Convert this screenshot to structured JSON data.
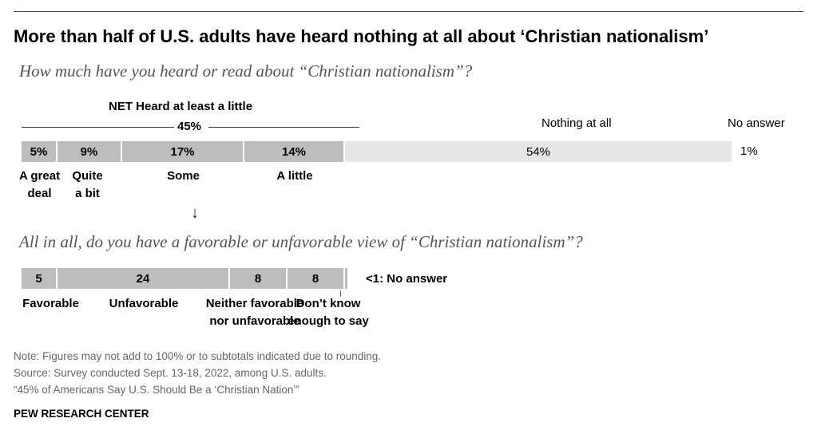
{
  "title": "More than half of U.S. adults have heard nothing at all about ‘Christian nationalism’",
  "question1": "How much have you heard or read about “Christian nationalism”?",
  "question2": "All in all, do you have a favorable or unfavorable view of “Christian nationalism”?",
  "net_label": "NET Heard at least a little",
  "net_value": "45%",
  "header_nothing": "Nothing at all",
  "header_no_answer": "No answer",
  "arrow": "↓",
  "chart_data": [
    {
      "type": "bar",
      "orientation": "horizontal-stacked",
      "categories": [
        "A great deal",
        "Quite a bit",
        "Some",
        "A little",
        "Nothing at all",
        "No answer"
      ],
      "values": [
        5,
        9,
        17,
        14,
        54,
        1
      ],
      "value_labels": [
        "5%",
        "9%",
        "17%",
        "14%",
        "54%",
        "1%"
      ],
      "category_labels": [
        [
          "A great",
          "deal"
        ],
        [
          "Quite",
          "a bit"
        ],
        [
          "Some"
        ],
        [
          "A little"
        ],
        [],
        []
      ],
      "colors": [
        "#bdbdbd",
        "#bdbdbd",
        "#bdbdbd",
        "#bdbdbd",
        "#e6e6e6",
        "#ffffff"
      ]
    },
    {
      "type": "bar",
      "orientation": "horizontal-stacked",
      "categories": [
        "Favorable",
        "Unfavorable",
        "Neither favorable nor unfavorable",
        "Don’t know enough to say",
        "No answer"
      ],
      "values": [
        5,
        24,
        8,
        8,
        0.5
      ],
      "value_labels": [
        "5",
        "24",
        "8",
        "8",
        ""
      ],
      "category_labels": [
        [
          "Favorable"
        ],
        [
          "Unfavorable"
        ],
        [
          "Neither favorable",
          "nor unfavorable"
        ],
        [
          "Don’t know",
          "enough to say"
        ],
        []
      ],
      "no_answer_label": "<1: No answer",
      "colors": [
        "#bdbdbd",
        "#bdbdbd",
        "#bdbdbd",
        "#bdbdbd",
        "#bdbdbd"
      ]
    }
  ],
  "notes": [
    "Note: Figures may not add to 100% or to subtotals indicated due to rounding.",
    "Source: Survey conducted Sept. 13-18, 2022, among U.S. adults.",
    "“45% of Americans Say U.S. Should Be a ‘Christian Nation’”"
  ],
  "brand": "PEW RESEARCH CENTER"
}
